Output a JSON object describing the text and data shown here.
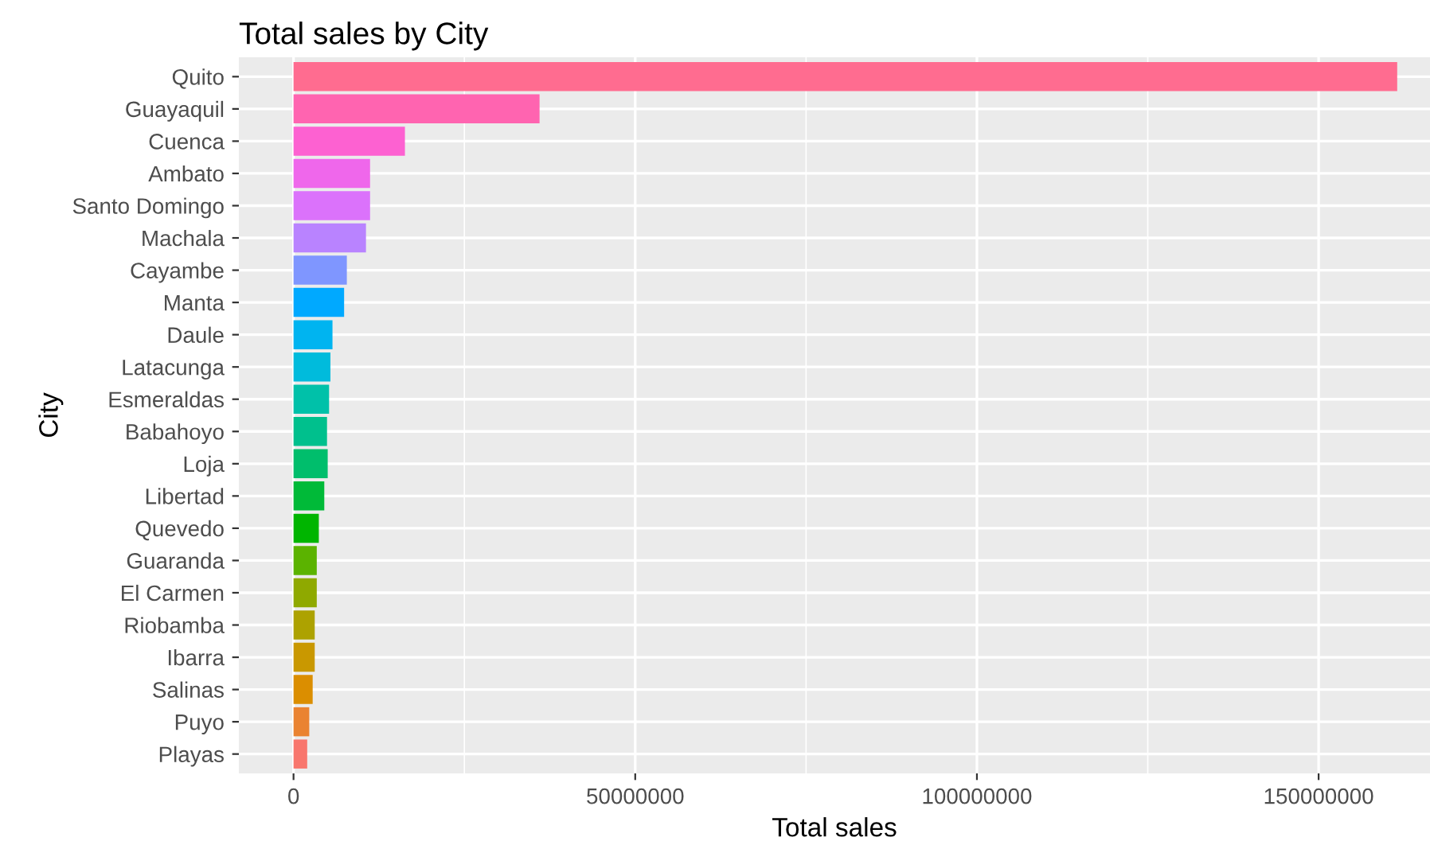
{
  "chart_data": {
    "type": "bar",
    "orientation": "horizontal",
    "title": "Total sales by City",
    "xlabel": "Total sales",
    "ylabel": "City",
    "categories": [
      "Quito",
      "Guayaquil",
      "Cuenca",
      "Ambato",
      "Santo Domingo",
      "Machala",
      "Cayambe",
      "Manta",
      "Daule",
      "Latacunga",
      "Esmeraldas",
      "Babahoyo",
      "Loja",
      "Libertad",
      "Quevedo",
      "Guaranda",
      "El Carmen",
      "Riobamba",
      "Ibarra",
      "Salinas",
      "Puyo",
      "Playas"
    ],
    "values": [
      161500000,
      36000000,
      16300000,
      11200000,
      11200000,
      10600000,
      7800000,
      7400000,
      5700000,
      5400000,
      5200000,
      4900000,
      5000000,
      4500000,
      3700000,
      3400000,
      3400000,
      3100000,
      3100000,
      2800000,
      2300000,
      2000000
    ],
    "colors": [
      "#ff6c90",
      "#ff64b0",
      "#fd61d1",
      "#ef67eb",
      "#db72fb",
      "#b983ff",
      "#7f96ff",
      "#00a9ff",
      "#00b4f0",
      "#00bbdc",
      "#00c1a9",
      "#00c08d",
      "#00be6c",
      "#00ba38",
      "#00b500",
      "#5bb300",
      "#8fa900",
      "#ada200",
      "#c99800",
      "#db8e00",
      "#ea8331",
      "#f8766d"
    ],
    "xlim": [
      -8000000,
      166300000
    ],
    "xticks": [
      0,
      50000000,
      100000000,
      150000000
    ],
    "grid": true
  }
}
